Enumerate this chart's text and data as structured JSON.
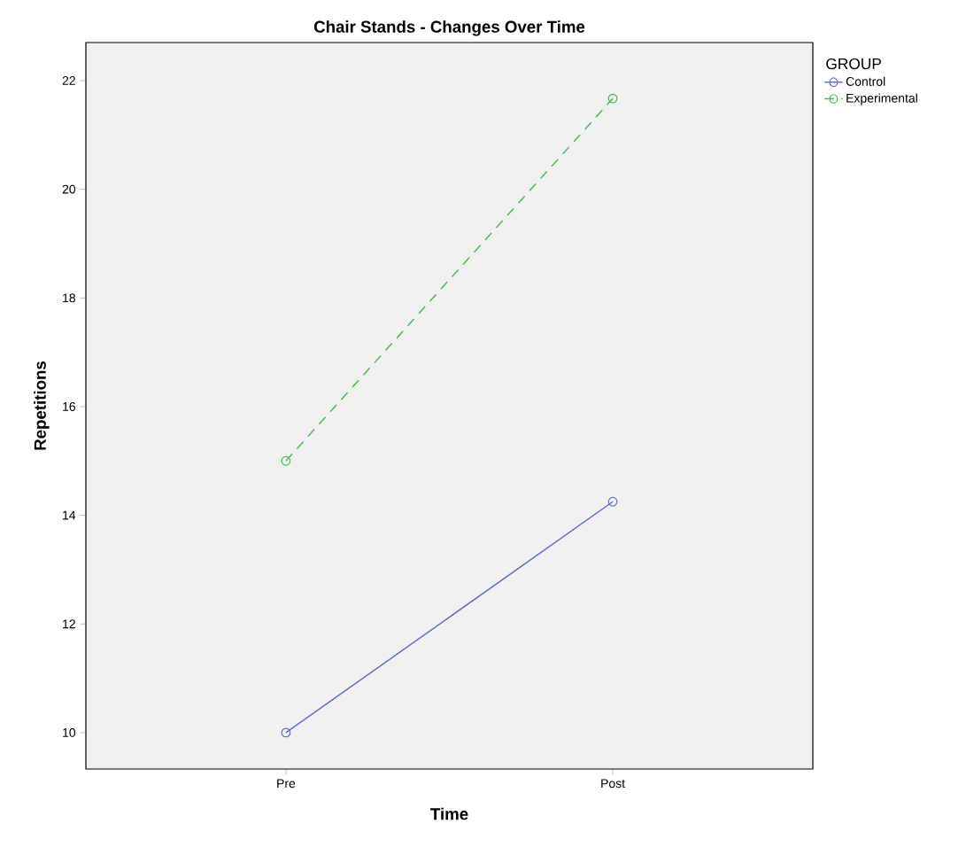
{
  "chart_data": {
    "type": "line",
    "title": "Chair Stands - Changes Over Time",
    "xlabel": "Time",
    "ylabel": "Repetitions",
    "legend_title": "GROUP",
    "categories": [
      "Pre",
      "Post"
    ],
    "series": [
      {
        "name": "Control",
        "color": "#5b6fc6",
        "values": [
          10,
          14.25
        ],
        "line_style": "solid"
      },
      {
        "name": "Experimental",
        "color": "#44bf4c",
        "values": [
          15,
          21.67
        ],
        "line_style": "dashed"
      }
    ],
    "ylim": [
      9.33,
      22.7
    ],
    "yticks": [
      10,
      12,
      14,
      16,
      18,
      20,
      22
    ],
    "grid": false,
    "legend": "top right",
    "marker": "circle"
  }
}
